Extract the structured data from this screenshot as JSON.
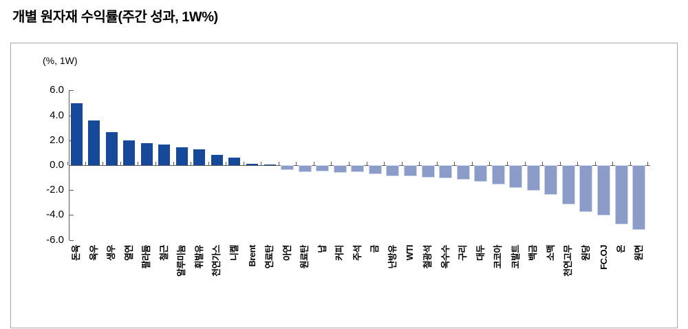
{
  "title": "개별 원자재 수익률(주간 성과, 1W%)",
  "chart_data": {
    "type": "bar",
    "title": "개별 원자재 수익률(주간 성과, 1W%)",
    "ylabel": "(%, 1W)",
    "xlabel": "",
    "ylim": [
      -6.0,
      6.0
    ],
    "grid": false,
    "legend": "none",
    "yticks": [
      6.0,
      4.0,
      2.0,
      0.0,
      -2.0,
      -4.0,
      -6.0
    ],
    "ytick_labels": [
      "6.0",
      "4.0",
      "2.0",
      "0.0",
      "-2.0",
      "-4.0",
      "-6.0"
    ],
    "categories": [
      "돈육",
      "육우",
      "생우",
      "열연",
      "팔라듐",
      "철근",
      "알루미늄",
      "휘발유",
      "천연가스",
      "니켈",
      "Brent",
      "연료탄",
      "아연",
      "원료탄",
      "납",
      "커피",
      "주석",
      "금",
      "난방유",
      "WTI",
      "철광석",
      "옥수수",
      "구리",
      "대두",
      "코코아",
      "코발트",
      "백금",
      "소맥",
      "천연고무",
      "원당",
      "FC.OJ",
      "은",
      "원면"
    ],
    "values": [
      4.98,
      3.6,
      2.65,
      2.0,
      1.75,
      1.65,
      1.45,
      1.25,
      0.85,
      0.6,
      0.1,
      0.07,
      -0.3,
      -0.42,
      -0.37,
      -0.5,
      -0.46,
      -0.6,
      -0.75,
      -0.8,
      -0.9,
      -0.95,
      -1.03,
      -1.2,
      -1.45,
      -1.7,
      -1.93,
      -2.25,
      -3.05,
      -3.65,
      -3.9,
      -4.65,
      -5.1
    ],
    "positive_bar_color": "#17499a",
    "negative_bar_color": "#8c9cc8",
    "axis_color": "#595959",
    "text_color": "#000000"
  }
}
